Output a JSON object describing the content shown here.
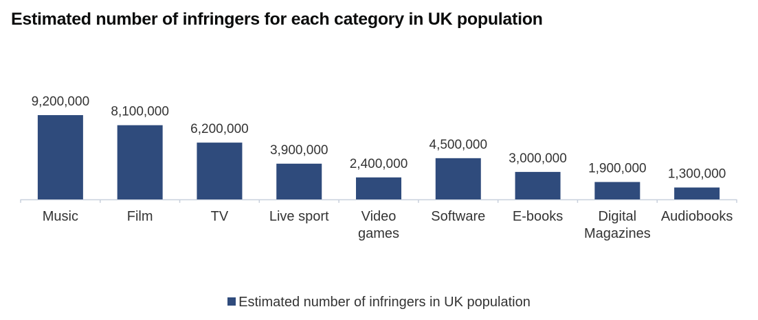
{
  "chart_data": {
    "type": "bar",
    "title": "Estimated number of infringers for each category in UK population",
    "categories": [
      "Music",
      "Film",
      "TV",
      "Live sport",
      "Video\ngames",
      "Software",
      "E-books",
      "Digital\nMagazines",
      "Audiobooks"
    ],
    "series": [
      {
        "name": "Estimated number of infringers in UK population",
        "color": "#2f4b7c",
        "values": [
          9200000,
          8100000,
          6200000,
          3900000,
          2400000,
          4500000,
          3000000,
          1900000,
          1300000
        ],
        "value_labels": [
          "9,200,000",
          "8,100,000",
          "6,200,000",
          "3,900,000",
          "2,400,000",
          "4,500,000",
          "3,000,000",
          "1,900,000",
          "1,300,000"
        ]
      }
    ]
  }
}
